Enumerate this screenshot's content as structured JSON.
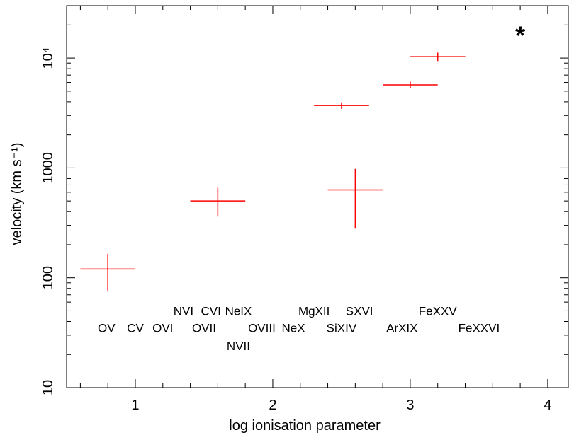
{
  "chart_data": {
    "type": "scatter",
    "xlabel": "log ionisation parameter",
    "ylabel": "velocity (km s⁻¹)",
    "xlim": [
      0.5,
      4.15
    ],
    "ylim": [
      10,
      30000
    ],
    "yscale": "log",
    "x_ticks": [
      {
        "value": 1,
        "label": "1"
      },
      {
        "value": 2,
        "label": "2"
      },
      {
        "value": 3,
        "label": "3"
      },
      {
        "value": 4,
        "label": "4"
      }
    ],
    "x_minor_ticks": [
      0.6,
      0.8,
      1.2,
      1.4,
      1.6,
      1.8,
      2.2,
      2.4,
      2.6,
      2.8,
      3.2,
      3.4,
      3.6,
      3.8
    ],
    "y_ticks": [
      {
        "value": 10,
        "label": "10"
      },
      {
        "value": 100,
        "label": "100"
      },
      {
        "value": 1000,
        "label": "1000"
      },
      {
        "value": 10000,
        "label": "10⁴"
      }
    ],
    "points": [
      {
        "x": 0.8,
        "y": 120,
        "xerr": 0.2,
        "ylo": 75,
        "yhi": 165
      },
      {
        "x": 1.6,
        "y": 500,
        "xerr": 0.2,
        "ylo": 360,
        "yhi": 660
      },
      {
        "x": 2.6,
        "y": 630,
        "xerr": 0.2,
        "ylo": 280,
        "yhi": 980
      },
      {
        "x": 2.5,
        "y": 3700,
        "xerr": 0.2,
        "ylo": 3450,
        "yhi": 3950
      },
      {
        "x": 3.0,
        "y": 5700,
        "xerr": 0.2,
        "ylo": 5300,
        "yhi": 6100
      },
      {
        "x": 3.2,
        "y": 10300,
        "xerr": 0.2,
        "ylo": 9400,
        "yhi": 11200
      }
    ],
    "marker": "*",
    "marker_pos": {
      "x": 3.8,
      "y": 18500
    },
    "color": "#ff0000",
    "ion_labels": [
      {
        "text": "OV",
        "x": 0.79,
        "y": 35
      },
      {
        "text": "CV",
        "x": 1.0,
        "y": 35
      },
      {
        "text": "OVI",
        "x": 1.2,
        "y": 35
      },
      {
        "text": "NVI",
        "x": 1.35,
        "y": 50
      },
      {
        "text": "CVI",
        "x": 1.55,
        "y": 50
      },
      {
        "text": "NeIX",
        "x": 1.75,
        "y": 50
      },
      {
        "text": "OVII",
        "x": 1.5,
        "y": 35
      },
      {
        "text": "NVII",
        "x": 1.75,
        "y": 24
      },
      {
        "text": "OVIII",
        "x": 1.92,
        "y": 35
      },
      {
        "text": "NeX",
        "x": 2.15,
        "y": 35
      },
      {
        "text": "MgXII",
        "x": 2.3,
        "y": 50
      },
      {
        "text": "SiXIV",
        "x": 2.5,
        "y": 35
      },
      {
        "text": "SXVI",
        "x": 2.63,
        "y": 50
      },
      {
        "text": "ArXIX",
        "x": 2.94,
        "y": 35
      },
      {
        "text": "FeXXV",
        "x": 3.2,
        "y": 50
      },
      {
        "text": "FeXXVI",
        "x": 3.5,
        "y": 35
      }
    ]
  }
}
